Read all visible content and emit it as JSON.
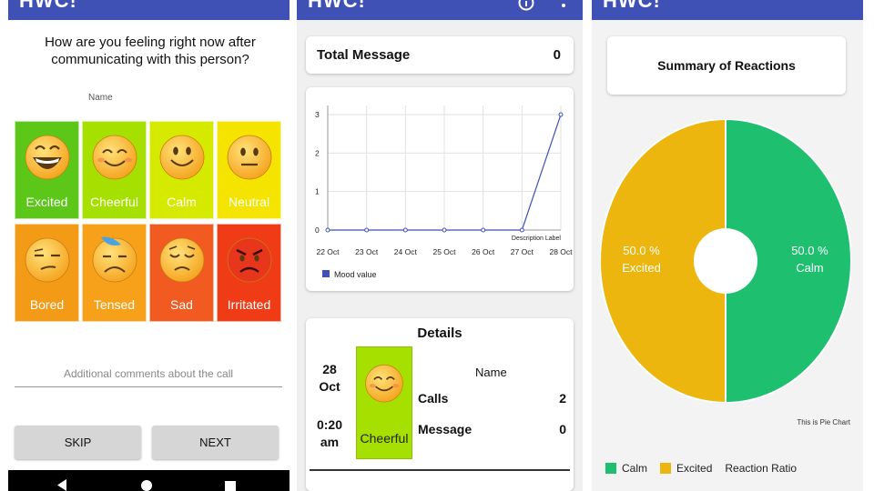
{
  "app": {
    "title": "HWC!"
  },
  "screen1": {
    "question": "How are you feeling right now after communicating with this person?",
    "name_label": "Name",
    "moods": [
      {
        "label": "Excited",
        "color": "#5cc619",
        "face": "excited"
      },
      {
        "label": "Cheerful",
        "color": "#a6e000",
        "face": "cheerful"
      },
      {
        "label": "Calm",
        "color": "#d6ea00",
        "face": "calm"
      },
      {
        "label": "Neutral",
        "color": "#f4e400",
        "face": "neutral"
      },
      {
        "label": "Bored",
        "color": "#f39a16",
        "face": "bored"
      },
      {
        "label": "Tensed",
        "color": "#f7a11a",
        "face": "tensed"
      },
      {
        "label": "Sad",
        "color": "#f15a20",
        "face": "sad"
      },
      {
        "label": "Irritated",
        "color": "#ef3c17",
        "face": "irritated"
      }
    ],
    "comments_placeholder": "Additional comments about the call",
    "skip_label": "SKIP",
    "next_label": "NEXT"
  },
  "screen2": {
    "total_message_label": "Total Message",
    "total_message_value": "0",
    "chart_description": "Description Label",
    "details_title": "Details",
    "date_day": "28",
    "date_month": "Oct",
    "time_value": "0:20",
    "time_period": "am",
    "mood_label": "Cheerful",
    "name_label": "Name",
    "calls_label": "Calls",
    "calls_value": "2",
    "message_label": "Message",
    "message_value": "0"
  },
  "screen3": {
    "summary_title": "Summary of Reactions",
    "pie_description": "This is Pie Chart",
    "reaction_ratio_label": "Reaction Ratio"
  },
  "chart_data": [
    {
      "type": "line",
      "x": [
        "22 Oct",
        "23 Oct",
        "24 Oct",
        "25 Oct",
        "26 Oct",
        "27 Oct",
        "28 Oct"
      ],
      "series": [
        {
          "name": "Mood value",
          "values": [
            0,
            0,
            0,
            0,
            0,
            0,
            3
          ],
          "color": "#3f51b5"
        }
      ],
      "ylim": [
        0,
        3
      ],
      "yticks": [
        "0",
        "1",
        "2",
        "3"
      ],
      "grid": true,
      "legend": "bottom-left"
    },
    {
      "type": "pie",
      "donut": true,
      "slices": [
        {
          "name": "Calm",
          "value": 50.0,
          "label": "50.0 %",
          "color": "#1ebf6f"
        },
        {
          "name": "Excited",
          "value": 50.0,
          "label": "50.0 %",
          "color": "#ecb60f"
        }
      ],
      "legend": "bottom-left"
    }
  ]
}
